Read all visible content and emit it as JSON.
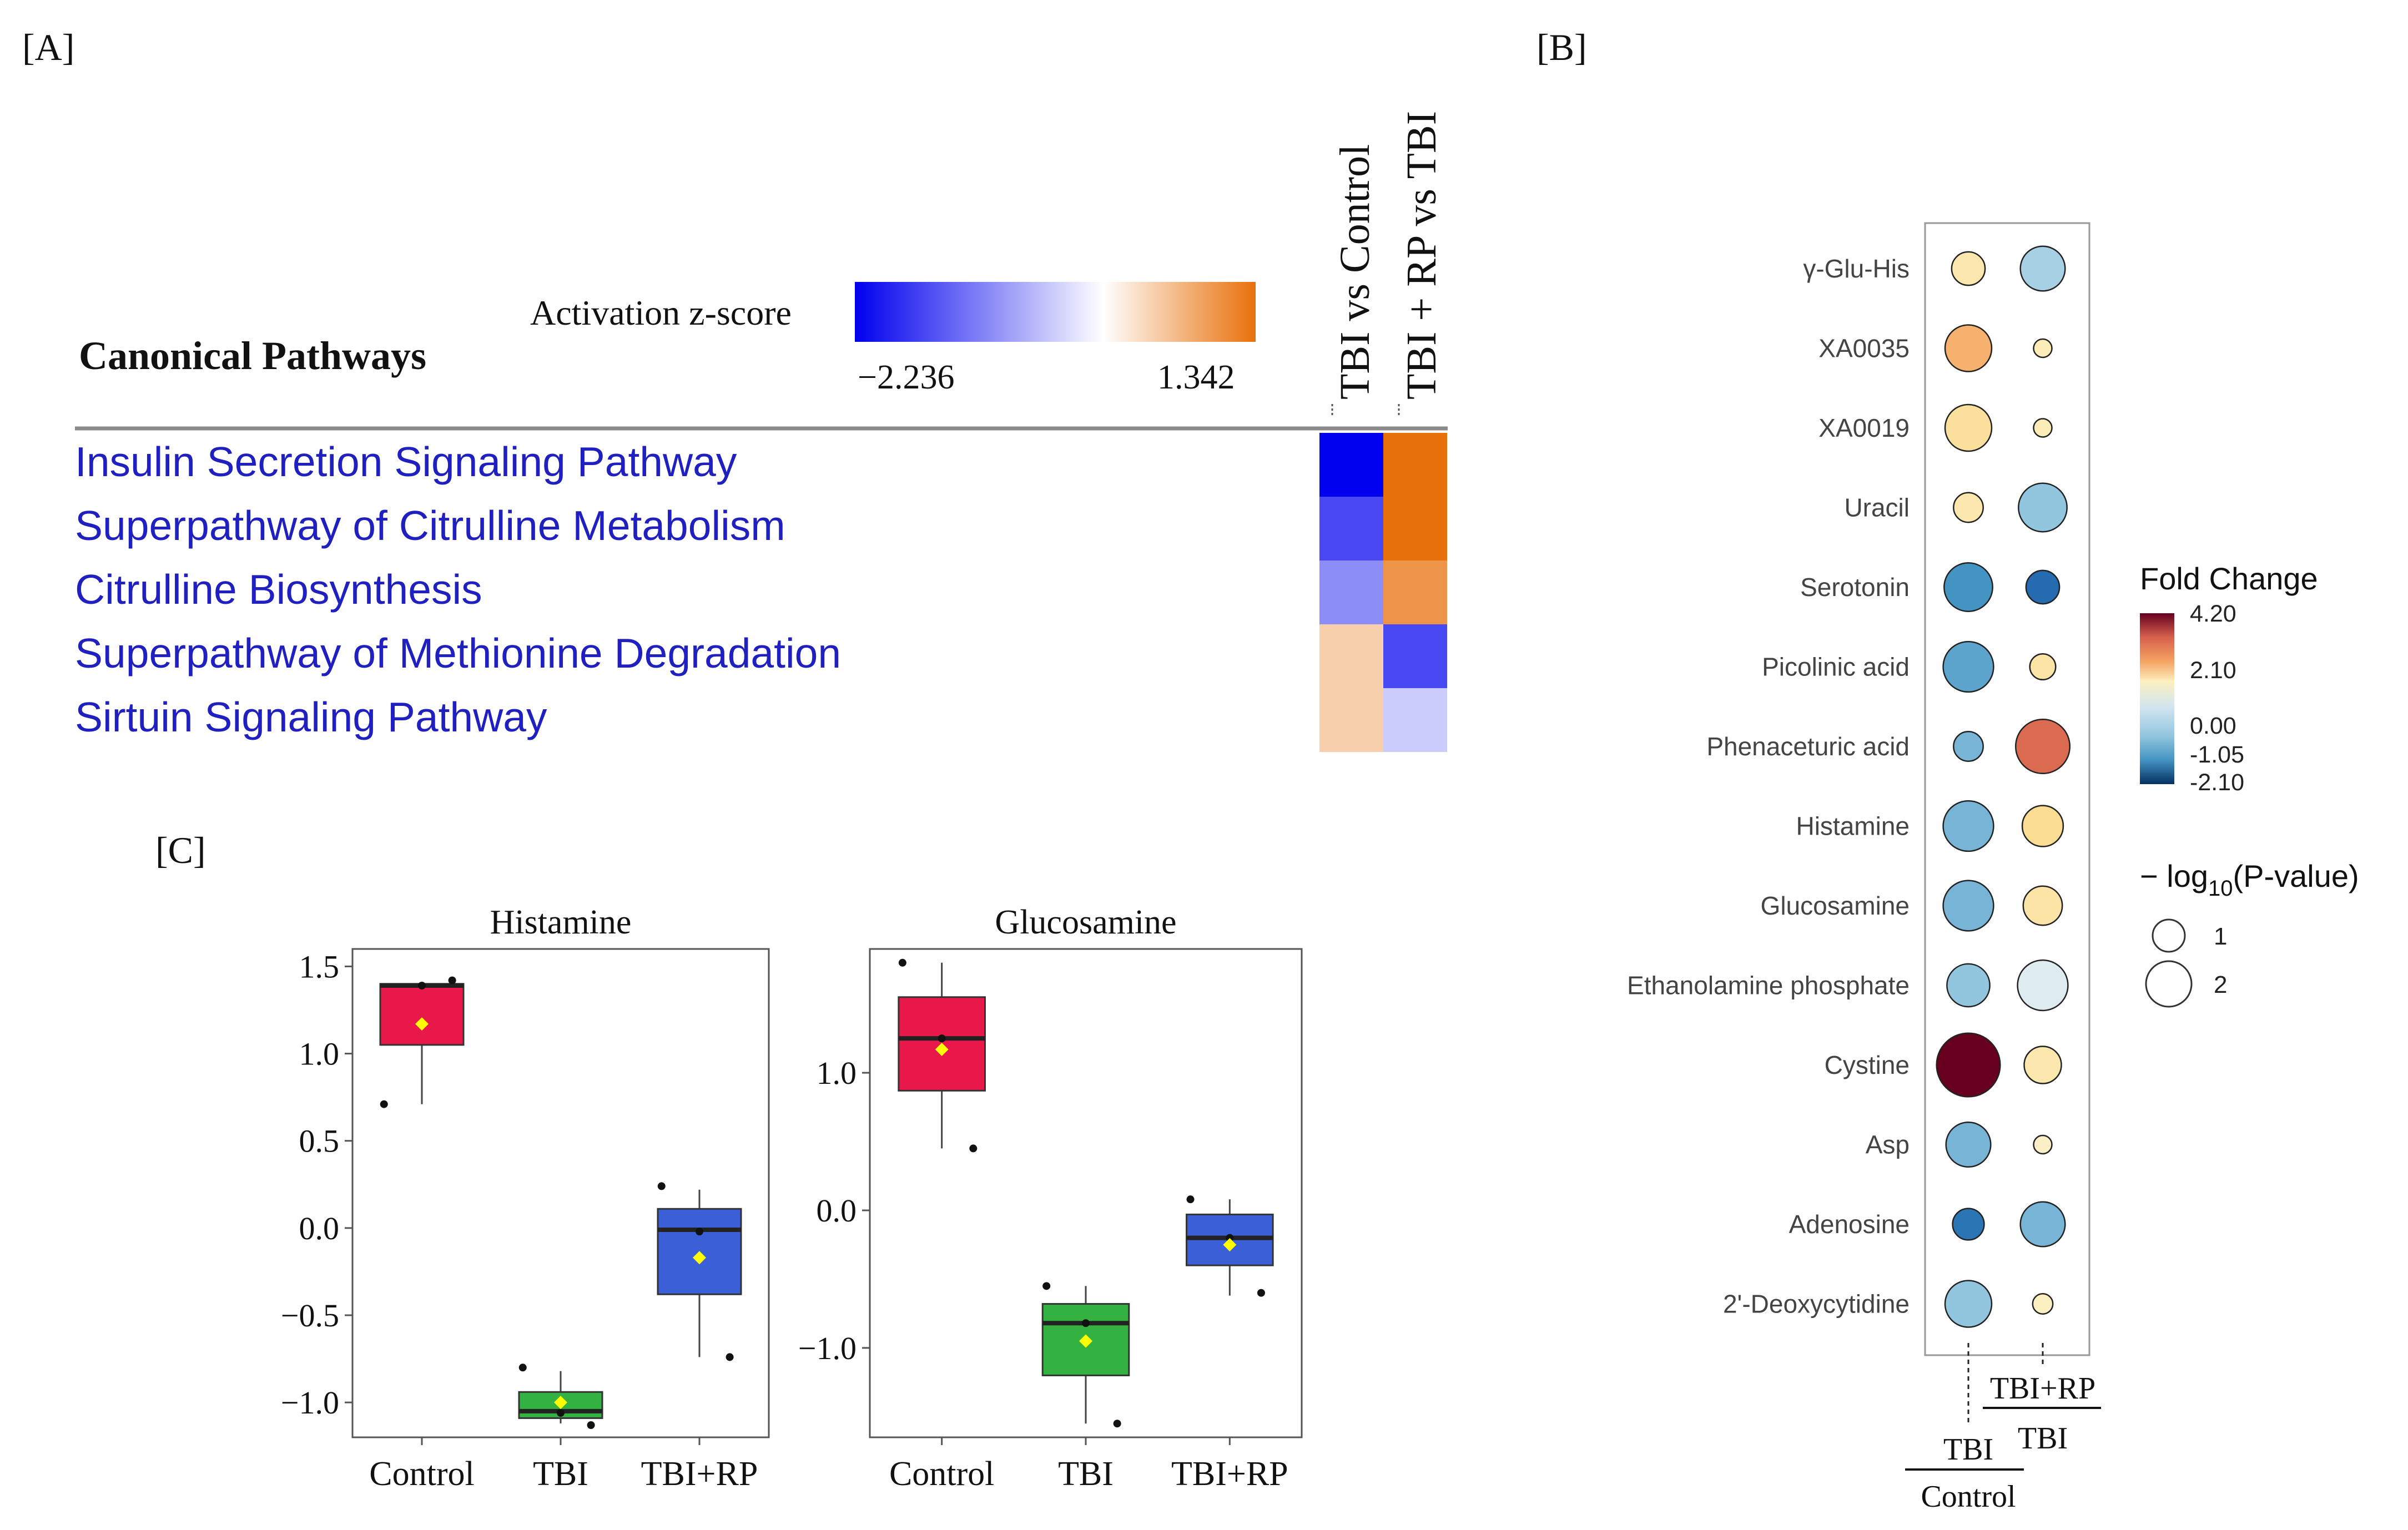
{
  "panels": {
    "A": {
      "label": "[A]",
      "heading": "Canonical Pathways",
      "legend_title": "Activation z-score",
      "zmin_label": "−2.236",
      "zmax_label": "1.342",
      "zrange": [
        -2.236,
        1.342
      ],
      "columns": [
        "TBI vs Control",
        "TBI + RP vs TBI"
      ],
      "colors": {
        "negative": "#0000ee",
        "neutral": "#ffffff",
        "positive": "#e8700a",
        "pathway_text": "#2020c0"
      }
    },
    "B": {
      "label": "[B]",
      "legend_title": "Fold Change",
      "fc_ticks": [
        "4.20",
        "2.10",
        "0.00",
        "-1.05",
        "-2.10"
      ],
      "size_title_prefix": "− log",
      "size_title_sub": "10",
      "size_title_suffix": "(P-value)",
      "size_ticks": [
        "1",
        "2"
      ],
      "axis_col1_num": "TBI",
      "axis_col1_den": "Control",
      "axis_col2_num": "TBI+RP",
      "axis_col2_den": "TBI",
      "colors": [
        "#67001f",
        "#d6604d",
        "#f4a261",
        "#f7d58a",
        "#fdf0c0",
        "#e6eef0",
        "#c9e2ee",
        "#92c5de",
        "#4393c3",
        "#053061"
      ]
    },
    "C": {
      "label": "[C]",
      "colors": {
        "Control": "#e8194a",
        "TBI": "#33b241",
        "TBI+RP": "#3a5fd6",
        "mean_marker": "#ffff00"
      }
    }
  },
  "chart_data": [
    {
      "type": "heatmap",
      "title": "Canonical Pathways",
      "legend": "Activation z-score",
      "columns": [
        "TBI vs Control",
        "TBI + RP vs TBI"
      ],
      "rows": [
        {
          "pathway": "Insulin Secretion Signaling Pathway",
          "z": [
            -2.236,
            1.342
          ]
        },
        {
          "pathway": "Superpathway of Citrulline Metabolism",
          "z": [
            -1.6,
            1.342
          ]
        },
        {
          "pathway": "Citrulline Biosynthesis",
          "z": [
            -1.0,
            1.0
          ]
        },
        {
          "pathway": "Superpathway of Methionine Degradation",
          "z": [
            0.45,
            -1.6
          ]
        },
        {
          "pathway": "Sirtuin Signaling Pathway",
          "z": [
            0.45,
            -0.45
          ]
        }
      ]
    },
    {
      "type": "scatter",
      "subtype": "bubble",
      "legend_color": "Fold Change",
      "color_range": [
        -2.1,
        4.2
      ],
      "legend_size": "-log10(P-value)",
      "columns": [
        "TBI/Control",
        "TBI+RP/TBI"
      ],
      "rows": [
        {
          "metabolite": "γ-Glu-His",
          "fc": [
            1.7,
            -0.2
          ],
          "logp": [
            1.3,
            1.9
          ]
        },
        {
          "metabolite": "XA0035",
          "fc": [
            2.6,
            1.6
          ],
          "logp": [
            2.0,
            0.5
          ]
        },
        {
          "metabolite": "XA0019",
          "fc": [
            1.9,
            1.6
          ],
          "logp": [
            2.0,
            0.5
          ]
        },
        {
          "metabolite": "Uracil",
          "fc": [
            1.7,
            -0.3
          ],
          "logp": [
            1.1,
            2.1
          ]
        },
        {
          "metabolite": "Serotonin",
          "fc": [
            -0.6,
            -1.0
          ],
          "logp": [
            2.1,
            1.3
          ]
        },
        {
          "metabolite": "Picolinic acid",
          "fc": [
            -0.5,
            1.8
          ],
          "logp": [
            2.2,
            0.9
          ]
        },
        {
          "metabolite": "Phenaceturic acid",
          "fc": [
            -0.4,
            3.3
          ],
          "logp": [
            1.1,
            2.4
          ]
        },
        {
          "metabolite": "Histamine",
          "fc": [
            -0.4,
            2.0
          ],
          "logp": [
            2.2,
            1.7
          ]
        },
        {
          "metabolite": "Glucosamine",
          "fc": [
            -0.4,
            1.8
          ],
          "logp": [
            2.2,
            1.6
          ]
        },
        {
          "metabolite": "Ethanolamine phosphate",
          "fc": [
            -0.3,
            0.3
          ],
          "logp": [
            1.8,
            2.2
          ]
        },
        {
          "metabolite": "Cystine",
          "fc": [
            4.2,
            1.7
          ],
          "logp": [
            2.9,
            1.5
          ]
        },
        {
          "metabolite": "Asp",
          "fc": [
            -0.4,
            1.4
          ],
          "logp": [
            1.9,
            0.5
          ]
        },
        {
          "metabolite": "Adenosine",
          "fc": [
            -0.9,
            -0.4
          ],
          "logp": [
            1.2,
            1.9
          ]
        },
        {
          "metabolite": "2'-Deoxycytidine",
          "fc": [
            -0.3,
            1.5
          ],
          "logp": [
            2.0,
            0.6
          ]
        }
      ]
    },
    {
      "type": "box",
      "title": "Histamine",
      "categories": [
        "Control",
        "TBI",
        "TBI+RP"
      ],
      "ylim": [
        -1.2,
        1.6
      ],
      "yticks": [
        -1.0,
        -0.5,
        0.0,
        0.5,
        1.0,
        1.5
      ],
      "ytick_labels": [
        "−1.0",
        "−0.5",
        "0.0",
        "0.5",
        "1.0",
        "1.5"
      ],
      "boxes": [
        {
          "q1": 1.05,
          "median": 1.39,
          "q3": 1.4,
          "whisker_low": 0.71,
          "whisker_high": 1.4,
          "mean": 1.17,
          "points": [
            0.71,
            1.39,
            1.42
          ]
        },
        {
          "q1": -1.09,
          "median": -1.05,
          "q3": -0.94,
          "whisker_low": -1.12,
          "whisker_high": -0.82,
          "mean": -1.0,
          "points": [
            -0.8,
            -1.06,
            -1.13
          ]
        },
        {
          "q1": -0.38,
          "median": -0.01,
          "q3": 0.11,
          "whisker_low": -0.74,
          "whisker_high": 0.22,
          "mean": -0.17,
          "points": [
            0.24,
            -0.02,
            -0.74
          ]
        }
      ]
    },
    {
      "type": "box",
      "title": "Glucosamine",
      "categories": [
        "Control",
        "TBI",
        "TBI+RP"
      ],
      "ylim": [
        -1.65,
        1.9
      ],
      "yticks": [
        -1.0,
        0.0,
        1.0
      ],
      "ytick_labels": [
        "−1.0",
        "0.0",
        "1.0"
      ],
      "boxes": [
        {
          "q1": 0.87,
          "median": 1.25,
          "q3": 1.55,
          "whisker_low": 0.45,
          "whisker_high": 1.8,
          "mean": 1.17,
          "points": [
            1.8,
            1.25,
            0.45
          ]
        },
        {
          "q1": -1.2,
          "median": -0.82,
          "q3": -0.68,
          "whisker_low": -1.55,
          "whisker_high": -0.55,
          "mean": -0.95,
          "points": [
            -0.55,
            -0.82,
            -1.55
          ]
        },
        {
          "q1": -0.4,
          "median": -0.2,
          "q3": -0.03,
          "whisker_low": -0.62,
          "whisker_high": 0.08,
          "mean": -0.25,
          "points": [
            0.08,
            -0.2,
            -0.6
          ]
        }
      ]
    }
  ]
}
